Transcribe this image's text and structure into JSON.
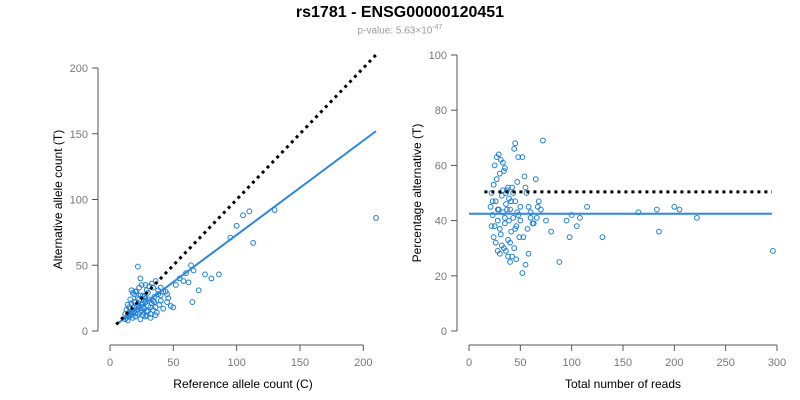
{
  "figure": {
    "title": "rs1781 - ENSG00000120451",
    "pvalue_prefix": "p-value: 5.63×10",
    "pvalue_exponent": "-47"
  },
  "colors": {
    "points": "#1E7FD8",
    "fit_line": "#2E86E0",
    "reference_line": "#000000",
    "ticks": "#777777"
  },
  "chart_data": [
    {
      "type": "scatter",
      "xlabel": "Reference allele count (C)",
      "ylabel": "Alternative allele count (T)",
      "xlim": [
        0,
        210
      ],
      "ylim": [
        0,
        200
      ],
      "xticks": [
        0,
        50,
        100,
        150,
        200
      ],
      "yticks": [
        0,
        50,
        100,
        150,
        200
      ],
      "reference_line": {
        "style": "dotted",
        "x": [
          5,
          210
        ],
        "y": [
          5,
          210
        ]
      },
      "fit_line": {
        "style": "solid",
        "x": [
          5,
          210
        ],
        "y": [
          5,
          152
        ]
      },
      "points": [
        [
          12,
          9
        ],
        [
          13,
          10
        ],
        [
          14,
          12
        ],
        [
          15,
          11
        ],
        [
          16,
          13
        ],
        [
          17,
          12
        ],
        [
          18,
          14
        ],
        [
          19,
          15
        ],
        [
          20,
          11
        ],
        [
          21,
          16
        ],
        [
          22,
          13
        ],
        [
          23,
          18
        ],
        [
          24,
          14
        ],
        [
          25,
          20
        ],
        [
          26,
          12
        ],
        [
          27,
          17
        ],
        [
          28,
          22
        ],
        [
          29,
          15
        ],
        [
          30,
          19
        ],
        [
          31,
          24
        ],
        [
          32,
          13
        ],
        [
          33,
          21
        ],
        [
          34,
          16
        ],
        [
          35,
          26
        ],
        [
          36,
          18
        ],
        [
          37,
          14
        ],
        [
          38,
          28
        ],
        [
          39,
          20
        ],
        [
          40,
          23
        ],
        [
          42,
          17
        ],
        [
          44,
          30
        ],
        [
          46,
          25
        ],
        [
          48,
          19
        ],
        [
          14,
          20
        ],
        [
          16,
          17
        ],
        [
          18,
          10
        ],
        [
          20,
          22
        ],
        [
          22,
          25
        ],
        [
          24,
          9
        ],
        [
          26,
          27
        ],
        [
          28,
          11
        ],
        [
          30,
          29
        ],
        [
          32,
          10
        ],
        [
          34,
          33
        ],
        [
          36,
          12
        ],
        [
          38,
          31
        ],
        [
          16,
          24
        ],
        [
          19,
          28
        ],
        [
          21,
          30
        ],
        [
          23,
          33
        ],
        [
          25,
          35
        ],
        [
          27,
          26
        ],
        [
          29,
          31
        ],
        [
          31,
          34
        ],
        [
          33,
          36
        ],
        [
          35,
          22
        ],
        [
          15,
          14
        ],
        [
          17,
          21
        ],
        [
          19,
          18
        ],
        [
          21,
          19
        ],
        [
          23,
          24
        ],
        [
          25,
          16
        ],
        [
          27,
          23
        ],
        [
          29,
          12
        ],
        [
          13,
          16
        ],
        [
          15,
          18
        ],
        [
          17,
          15
        ],
        [
          19,
          22
        ],
        [
          22,
          20
        ],
        [
          24,
          27
        ],
        [
          26,
          21
        ],
        [
          28,
          25
        ],
        [
          18,
          29
        ],
        [
          20,
          30
        ],
        [
          22,
          49
        ],
        [
          24,
          40
        ],
        [
          17,
          31
        ],
        [
          30,
          15
        ],
        [
          32,
          18
        ],
        [
          34,
          23
        ],
        [
          40,
          27
        ],
        [
          42,
          30
        ],
        [
          45,
          28
        ],
        [
          50,
          18
        ],
        [
          52,
          35
        ],
        [
          55,
          40
        ],
        [
          58,
          38
        ],
        [
          60,
          44
        ],
        [
          62,
          37
        ],
        [
          64,
          50
        ],
        [
          65,
          22
        ],
        [
          66,
          46
        ],
        [
          70,
          31
        ],
        [
          75,
          43
        ],
        [
          80,
          40
        ],
        [
          86,
          43
        ],
        [
          95,
          71
        ],
        [
          100,
          80
        ],
        [
          105,
          88
        ],
        [
          110,
          91
        ],
        [
          113,
          67
        ],
        [
          130,
          92
        ],
        [
          210,
          86
        ],
        [
          45,
          22
        ],
        [
          40,
          33
        ],
        [
          36,
          38
        ],
        [
          28,
          35
        ],
        [
          12,
          13
        ],
        [
          14,
          8
        ],
        [
          20,
          14
        ],
        [
          26,
          18
        ]
      ]
    },
    {
      "type": "scatter",
      "xlabel": "Total number of reads",
      "ylabel": "Percentage alternative (T)",
      "xlim": [
        0,
        300
      ],
      "ylim": [
        0,
        100
      ],
      "xticks": [
        0,
        50,
        100,
        150,
        200,
        250,
        300
      ],
      "yticks": [
        0,
        20,
        40,
        60,
        80,
        100
      ],
      "reference_line": {
        "style": "dotted",
        "x": [
          15,
          295
        ],
        "y": [
          50.4,
          50.4
        ]
      },
      "fit_line": {
        "style": "solid",
        "x": [
          0,
          295
        ],
        "y": [
          42.5,
          42.5
        ]
      },
      "points": [
        [
          21,
          45
        ],
        [
          22,
          50
        ],
        [
          23,
          42
        ],
        [
          24,
          53
        ],
        [
          25,
          38
        ],
        [
          26,
          47
        ],
        [
          27,
          55
        ],
        [
          28,
          40
        ],
        [
          29,
          44
        ],
        [
          30,
          57
        ],
        [
          31,
          35
        ],
        [
          32,
          49
        ],
        [
          33,
          43
        ],
        [
          34,
          58
        ],
        [
          35,
          39
        ],
        [
          36,
          46
        ],
        [
          37,
          51
        ],
        [
          38,
          33
        ],
        [
          39,
          48
        ],
        [
          40,
          44
        ],
        [
          41,
          36
        ],
        [
          42,
          52
        ],
        [
          43,
          41
        ],
        [
          44,
          30
        ],
        [
          45,
          47
        ],
        [
          46,
          38
        ],
        [
          47,
          54
        ],
        [
          48,
          42
        ],
        [
          49,
          34
        ],
        [
          50,
          45
        ],
        [
          25,
          60
        ],
        [
          27,
          63
        ],
        [
          29,
          64
        ],
        [
          31,
          62
        ],
        [
          33,
          61
        ],
        [
          35,
          59
        ],
        [
          28,
          29
        ],
        [
          30,
          28
        ],
        [
          32,
          31
        ],
        [
          34,
          30
        ],
        [
          36,
          29
        ],
        [
          38,
          27
        ],
        [
          40,
          25
        ],
        [
          26,
          32
        ],
        [
          24,
          34
        ],
        [
          22,
          38
        ],
        [
          23,
          47
        ],
        [
          30,
          37
        ],
        [
          33,
          51
        ],
        [
          35,
          41
        ],
        [
          37,
          44
        ],
        [
          39,
          40
        ],
        [
          41,
          47
        ],
        [
          43,
          50
        ],
        [
          45,
          37
        ],
        [
          47,
          43
        ],
        [
          44,
          66
        ],
        [
          45,
          68
        ],
        [
          48,
          63
        ],
        [
          52,
          63
        ],
        [
          54,
          56
        ],
        [
          55,
          52
        ],
        [
          56,
          50
        ],
        [
          58,
          45
        ],
        [
          60,
          41
        ],
        [
          62,
          39
        ],
        [
          65,
          55
        ],
        [
          68,
          47
        ],
        [
          70,
          44
        ],
        [
          72,
          69
        ],
        [
          52,
          21
        ],
        [
          55,
          24
        ],
        [
          58,
          28
        ],
        [
          75,
          40
        ],
        [
          80,
          36
        ],
        [
          88,
          25
        ],
        [
          95,
          40
        ],
        [
          98,
          34
        ],
        [
          100,
          42
        ],
        [
          105,
          38
        ],
        [
          108,
          41
        ],
        [
          115,
          45
        ],
        [
          130,
          34
        ],
        [
          165,
          43
        ],
        [
          185,
          36
        ],
        [
          183,
          44
        ],
        [
          200,
          45
        ],
        [
          205,
          44
        ],
        [
          222,
          41
        ],
        [
          296,
          29
        ],
        [
          40,
          32
        ],
        [
          42,
          27
        ],
        [
          46,
          26
        ],
        [
          50,
          40
        ],
        [
          53,
          34
        ],
        [
          57,
          37
        ],
        [
          60,
          43
        ],
        [
          63,
          39
        ],
        [
          66,
          41
        ],
        [
          67,
          45
        ],
        [
          36,
          50
        ],
        [
          38,
          52
        ],
        [
          28,
          44
        ]
      ]
    }
  ]
}
